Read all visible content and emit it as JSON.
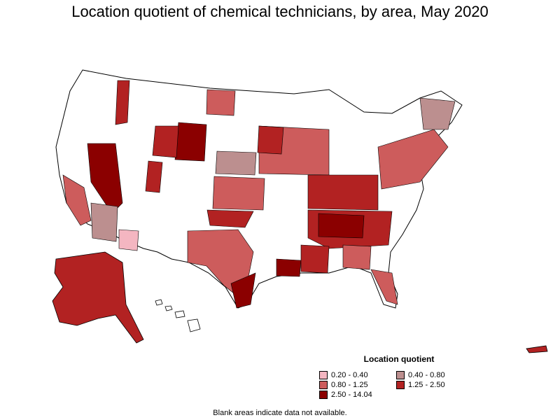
{
  "title": "Location quotient of chemical technicians, by area, May 2020",
  "legend": {
    "title": "Location quotient",
    "items": [
      {
        "label": "0.20 - 0.40",
        "color": "#f4b6c1"
      },
      {
        "label": "0.40 - 0.80",
        "color": "#bc8f8f"
      },
      {
        "label": "0.80 - 1.25",
        "color": "#cd5c5c"
      },
      {
        "label": "1.25 - 2.50",
        "color": "#b22222"
      },
      {
        "label": "2.50 - 14.04",
        "color": "#8b0000"
      }
    ]
  },
  "footnote": "Blank areas indicate data not available."
}
